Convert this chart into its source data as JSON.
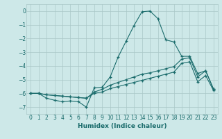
{
  "xlabel": "Humidex (Indice chaleur)",
  "background_color": "#cde8e8",
  "grid_color": "#aac8c8",
  "line_color": "#1a6b6b",
  "xlim": [
    -0.5,
    23.5
  ],
  "ylim": [
    -7.5,
    0.5
  ],
  "yticks": [
    0,
    -1,
    -2,
    -3,
    -4,
    -5,
    -6,
    -7
  ],
  "xticks": [
    0,
    1,
    2,
    3,
    4,
    5,
    6,
    7,
    8,
    9,
    10,
    11,
    12,
    13,
    14,
    15,
    16,
    17,
    18,
    19,
    20,
    21,
    22,
    23
  ],
  "line1_x": [
    0,
    1,
    2,
    3,
    4,
    5,
    6,
    7,
    8,
    9,
    10,
    11,
    12,
    13,
    14,
    15,
    16,
    17,
    18,
    19,
    20,
    21,
    22,
    23
  ],
  "line1_y": [
    -6.0,
    -6.0,
    -6.35,
    -6.5,
    -6.6,
    -6.55,
    -6.6,
    -7.0,
    -5.6,
    -5.55,
    -4.8,
    -3.35,
    -2.2,
    -1.05,
    -0.05,
    0.0,
    -0.55,
    -2.1,
    -2.25,
    -3.3,
    -3.3,
    -4.55,
    -4.35,
    -5.7
  ],
  "line2_x": [
    0,
    1,
    2,
    3,
    4,
    5,
    6,
    7,
    8,
    9,
    10,
    11,
    12,
    13,
    14,
    15,
    16,
    17,
    18,
    19,
    20,
    21,
    22,
    23
  ],
  "line2_y": [
    -6.0,
    -6.0,
    -6.1,
    -6.15,
    -6.2,
    -6.25,
    -6.3,
    -6.35,
    -5.9,
    -5.7,
    -5.4,
    -5.2,
    -5.0,
    -4.8,
    -4.6,
    -4.5,
    -4.35,
    -4.2,
    -4.05,
    -3.5,
    -3.4,
    -4.8,
    -4.35,
    -5.7
  ],
  "line3_x": [
    0,
    1,
    2,
    3,
    4,
    5,
    6,
    7,
    8,
    9,
    10,
    11,
    12,
    13,
    14,
    15,
    16,
    17,
    18,
    19,
    20,
    21,
    22,
    23
  ],
  "line3_y": [
    -6.0,
    -6.0,
    -6.1,
    -6.15,
    -6.2,
    -6.25,
    -6.3,
    -6.35,
    -6.0,
    -5.9,
    -5.65,
    -5.5,
    -5.35,
    -5.2,
    -5.05,
    -4.9,
    -4.75,
    -4.6,
    -4.45,
    -3.8,
    -3.7,
    -5.15,
    -4.7,
    -5.8
  ]
}
